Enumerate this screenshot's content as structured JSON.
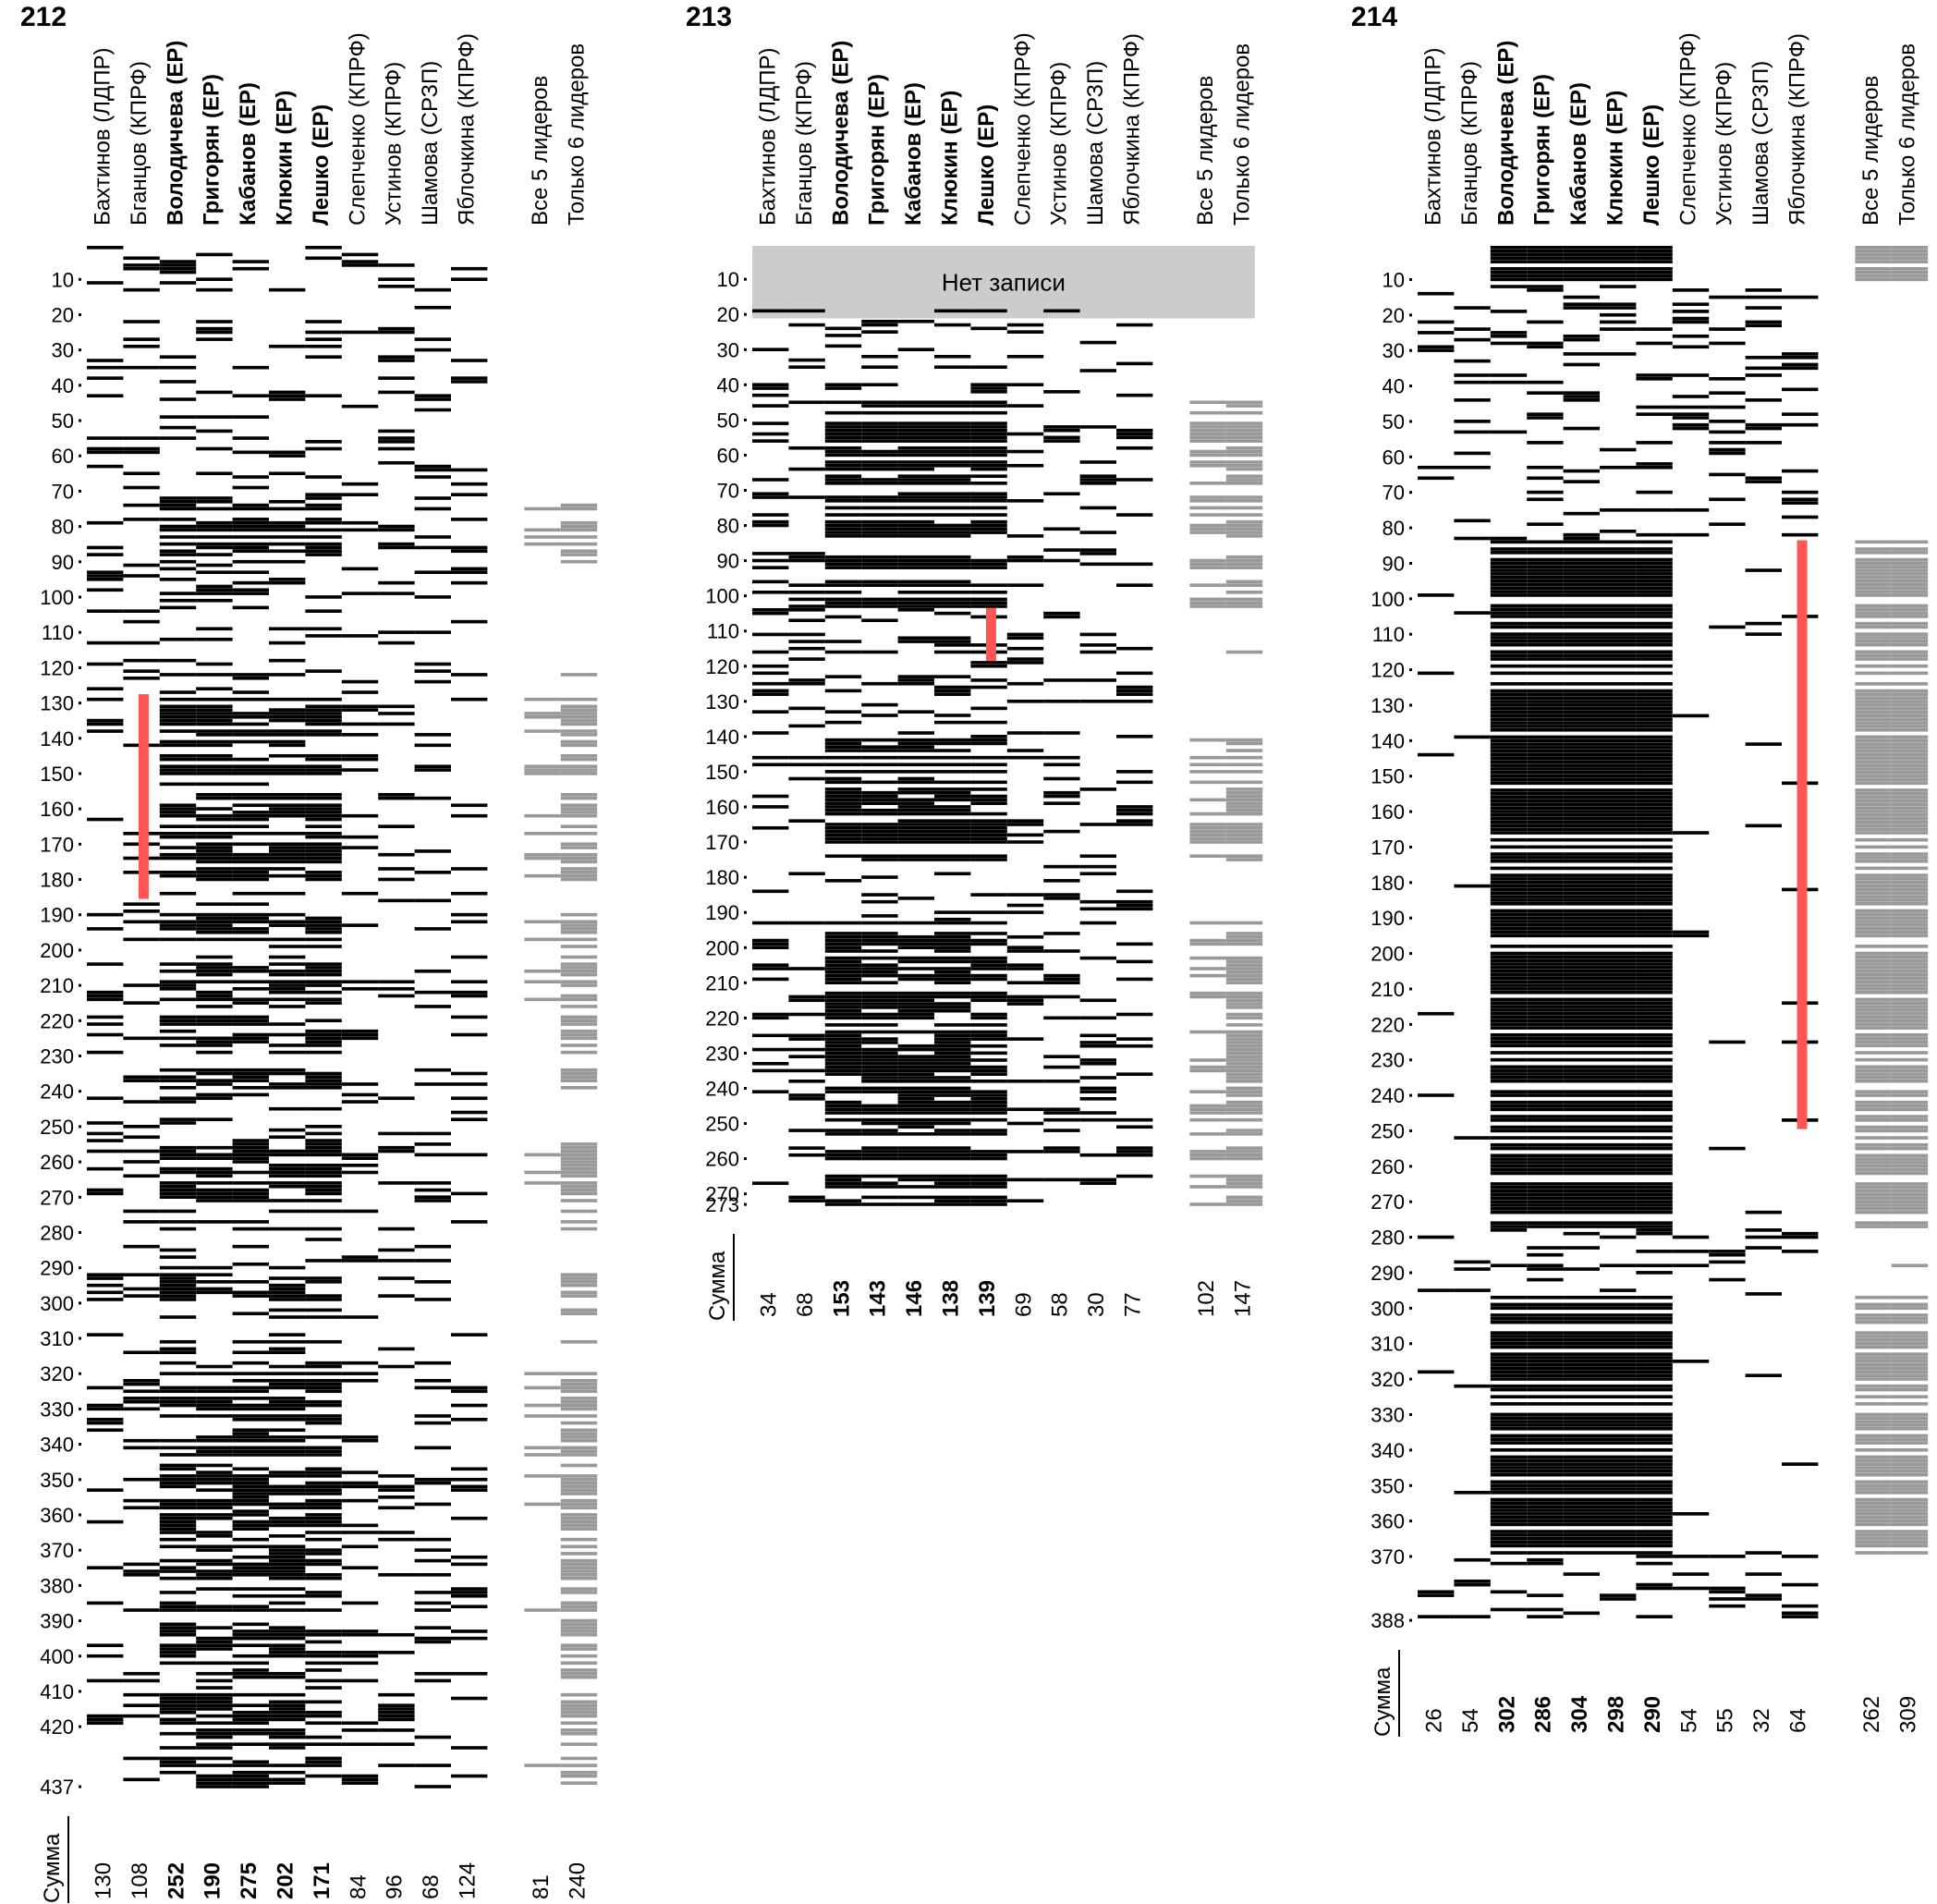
{
  "chart_data": [
    {
      "type": "heatmap",
      "title": "212",
      "rows_max": 437,
      "y_ticks": [
        "10",
        "20",
        "30",
        "40",
        "50",
        "60",
        "70",
        "80",
        "90",
        "100",
        "110",
        "120",
        "130",
        "140",
        "150",
        "160",
        "170",
        "180",
        "190",
        "200",
        "210",
        "220",
        "230",
        "240",
        "250",
        "260",
        "270",
        "280",
        "290",
        "300",
        "310",
        "320",
        "330",
        "340",
        "350",
        "360",
        "370",
        "380",
        "390",
        "400",
        "410",
        "420",
        "437"
      ],
      "columns": [
        {
          "label": "Бахтинов (ЛДПР)",
          "bold": false,
          "sum": "130"
        },
        {
          "label": "Бганцов (КПРФ)",
          "bold": false,
          "sum": "108"
        },
        {
          "label": "Володичева (ЕР)",
          "bold": true,
          "sum": "252"
        },
        {
          "label": "Григорян (ЕР)",
          "bold": true,
          "sum": "190"
        },
        {
          "label": "Кабанов (ЕР)",
          "bold": true,
          "sum": "275"
        },
        {
          "label": "Клюкин (ЕР)",
          "bold": true,
          "sum": "202"
        },
        {
          "label": "Лешко (ЕР)",
          "bold": true,
          "sum": "171"
        },
        {
          "label": "Слепченко (КПРФ)",
          "bold": false,
          "sum": "84"
        },
        {
          "label": "Устинов (КПРФ)",
          "bold": false,
          "sum": "96"
        },
        {
          "label": "Шамова (СРЗП)",
          "bold": false,
          "sum": "68"
        },
        {
          "label": "Яблочкина (КПРФ)",
          "bold": false,
          "sum": "124"
        }
      ],
      "summary_columns": [
        {
          "label": "Все 5 лидеров",
          "sum": "81"
        },
        {
          "label": "Только 6 лидеров",
          "sum": "240"
        }
      ],
      "sum_label": "Сумма",
      "highlight": {
        "column": 1,
        "from": 128,
        "to": 185
      },
      "ranges": [
        {
          "cols": [
            2,
            3,
            4,
            5,
            6
          ],
          "from": 74,
          "to": 90,
          "density": 0.8
        },
        {
          "cols": [
            2,
            3,
            4,
            5,
            6
          ],
          "from": 128,
          "to": 185,
          "density": 0.75
        },
        {
          "cols": [
            2,
            3,
            4,
            5,
            6
          ],
          "from": 190,
          "to": 240,
          "density": 0.7
        },
        {
          "cols": [
            2,
            3,
            4,
            5,
            6
          ],
          "from": 255,
          "to": 280,
          "density": 0.7
        },
        {
          "cols": [
            2,
            3,
            4,
            5,
            6
          ],
          "from": 290,
          "to": 437,
          "density": 0.65
        }
      ]
    },
    {
      "type": "heatmap",
      "title": "213",
      "rows_max": 273,
      "y_ticks": [
        "10",
        "20",
        "30",
        "40",
        "50",
        "60",
        "70",
        "80",
        "90",
        "100",
        "110",
        "120",
        "130",
        "140",
        "150",
        "160",
        "170",
        "180",
        "190",
        "200",
        "210",
        "220",
        "230",
        "240",
        "250",
        "260",
        "270",
        "273"
      ],
      "columns": [
        {
          "label": "Бахтинов (ЛДПР)",
          "bold": false,
          "sum": "34"
        },
        {
          "label": "Бганцов (КПРФ)",
          "bold": false,
          "sum": "68"
        },
        {
          "label": "Володичева (ЕР)",
          "bold": true,
          "sum": "153"
        },
        {
          "label": "Григорян (ЕР)",
          "bold": true,
          "sum": "143"
        },
        {
          "label": "Кабанов (ЕР)",
          "bold": true,
          "sum": "146"
        },
        {
          "label": "Клюкин (ЕР)",
          "bold": true,
          "sum": "138"
        },
        {
          "label": "Лешко (ЕР)",
          "bold": true,
          "sum": "139"
        },
        {
          "label": "Слепченко (КПРФ)",
          "bold": false,
          "sum": "69"
        },
        {
          "label": "Устинов (КПРФ)",
          "bold": false,
          "sum": "58"
        },
        {
          "label": "Шамова (СРЗП)",
          "bold": false,
          "sum": "30"
        },
        {
          "label": "Яблочкина (КПРФ)",
          "bold": false,
          "sum": "77"
        }
      ],
      "summary_columns": [
        {
          "label": "Все 5 лидеров",
          "sum": "102"
        },
        {
          "label": "Только 6 лидеров",
          "sum": "147"
        }
      ],
      "sum_label": "Сумма",
      "no_record": {
        "text": "Нет записи",
        "from": 1,
        "to": 18
      },
      "highlight": {
        "column": 6,
        "from": 104,
        "to": 118
      },
      "ranges": [
        {
          "cols": [
            2,
            3,
            4,
            5,
            6
          ],
          "from": 44,
          "to": 84,
          "density": 0.95
        },
        {
          "cols": [
            2,
            3,
            4,
            5,
            6
          ],
          "from": 89,
          "to": 103,
          "density": 0.9
        },
        {
          "cols": [
            2,
            3,
            4,
            5,
            6
          ],
          "from": 141,
          "to": 175,
          "density": 0.85
        },
        {
          "cols": [
            2,
            3,
            4,
            5,
            6
          ],
          "from": 193,
          "to": 273,
          "density": 0.8
        }
      ]
    },
    {
      "type": "heatmap",
      "title": "214",
      "rows_max": 388,
      "y_ticks": [
        "10",
        "20",
        "30",
        "40",
        "50",
        "60",
        "70",
        "80",
        "90",
        "100",
        "110",
        "120",
        "130",
        "140",
        "150",
        "160",
        "170",
        "180",
        "190",
        "200",
        "210",
        "220",
        "230",
        "240",
        "250",
        "260",
        "270",
        "280",
        "290",
        "300",
        "310",
        "320",
        "330",
        "340",
        "350",
        "360",
        "370",
        "388"
      ],
      "columns": [
        {
          "label": "Бахтинов (ЛДПР)",
          "bold": false,
          "sum": "26"
        },
        {
          "label": "Бганцов (КПРФ)",
          "bold": false,
          "sum": "54"
        },
        {
          "label": "Володичева (ЕР)",
          "bold": true,
          "sum": "302"
        },
        {
          "label": "Григорян (ЕР)",
          "bold": true,
          "sum": "286"
        },
        {
          "label": "Кабанов (ЕР)",
          "bold": true,
          "sum": "304"
        },
        {
          "label": "Клюкин (ЕР)",
          "bold": true,
          "sum": "298"
        },
        {
          "label": "Лешко (ЕР)",
          "bold": true,
          "sum": "290"
        },
        {
          "label": "Слепченко (КПРФ)",
          "bold": false,
          "sum": "54"
        },
        {
          "label": "Устинов (КПРФ)",
          "bold": false,
          "sum": "55"
        },
        {
          "label": "Шамова (СРЗП)",
          "bold": false,
          "sum": "32"
        },
        {
          "label": "Яблочкина (КПРФ)",
          "bold": false,
          "sum": "64"
        }
      ],
      "summary_columns": [
        {
          "label": "Все 5 лидеров",
          "sum": "262"
        },
        {
          "label": "Только 6 лидеров",
          "sum": "309"
        }
      ],
      "sum_label": "Сумма",
      "highlight": {
        "column": 10,
        "from": 84,
        "to": 249
      },
      "ranges": [
        {
          "cols": [
            2,
            3,
            4,
            5,
            6
          ],
          "from": 1,
          "to": 11,
          "density": 1.0
        },
        {
          "cols": [
            2,
            3,
            4,
            5,
            6
          ],
          "from": 84,
          "to": 277,
          "density": 1.0
        },
        {
          "cols": [
            2,
            3,
            4,
            5,
            6
          ],
          "from": 297,
          "to": 369,
          "density": 1.0
        }
      ]
    }
  ]
}
